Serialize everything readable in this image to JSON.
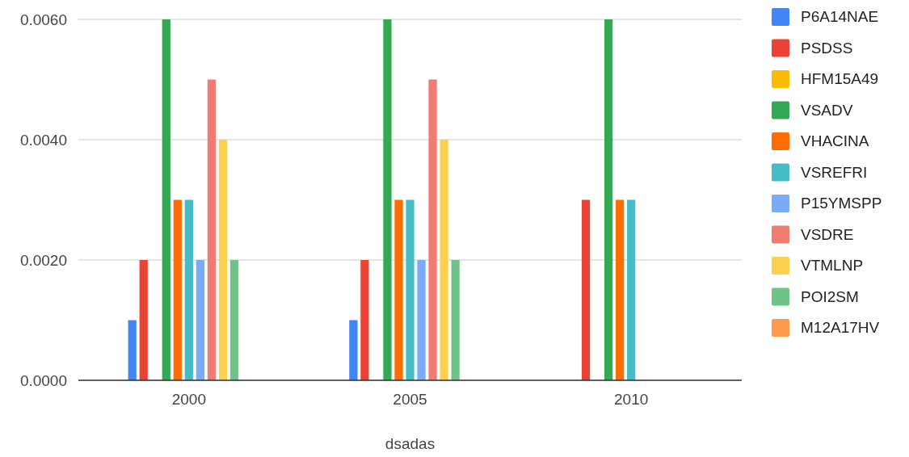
{
  "chart_data": {
    "type": "bar",
    "xlabel": "dsadas",
    "categories": [
      "2000",
      "2005",
      "2010"
    ],
    "series": [
      {
        "name": "P6A14NAE",
        "color": "#4285f4",
        "values": [
          0.001,
          0.001,
          0
        ]
      },
      {
        "name": "PSDSS",
        "color": "#ea4335",
        "values": [
          0.002,
          0.002,
          0.003
        ]
      },
      {
        "name": "HFM15A49",
        "color": "#fbbc04",
        "values": [
          0,
          0,
          0
        ]
      },
      {
        "name": "VSADV",
        "color": "#34a853",
        "values": [
          0.006,
          0.006,
          0.006
        ]
      },
      {
        "name": "VHACINA",
        "color": "#ff6d01",
        "values": [
          0.003,
          0.003,
          0.003
        ]
      },
      {
        "name": "VSREFRI",
        "color": "#46bdc6",
        "values": [
          0.003,
          0.003,
          0.003
        ]
      },
      {
        "name": "P15YMSPP",
        "color": "#7baaf7",
        "values": [
          0.002,
          0.002,
          0
        ]
      },
      {
        "name": "VSDRE",
        "color": "#f07b72",
        "values": [
          0.005,
          0.005,
          0
        ]
      },
      {
        "name": "VTMLNP",
        "color": "#fcd04f",
        "values": [
          0.004,
          0.004,
          0
        ]
      },
      {
        "name": "POI2SM",
        "color": "#71c287",
        "values": [
          0.002,
          0.002,
          0
        ]
      },
      {
        "name": "M12A17HV",
        "color": "#ff994d",
        "values": [
          0,
          0,
          0
        ]
      }
    ],
    "ylim": [
      0,
      0.006
    ],
    "yticks": [
      {
        "value": 0,
        "label": "0.0000"
      },
      {
        "value": 0.002,
        "label": "0.0020"
      },
      {
        "value": 0.004,
        "label": "0.0040"
      },
      {
        "value": 0.006,
        "label": "0.0060"
      }
    ],
    "grid": "y",
    "legend": "right"
  }
}
